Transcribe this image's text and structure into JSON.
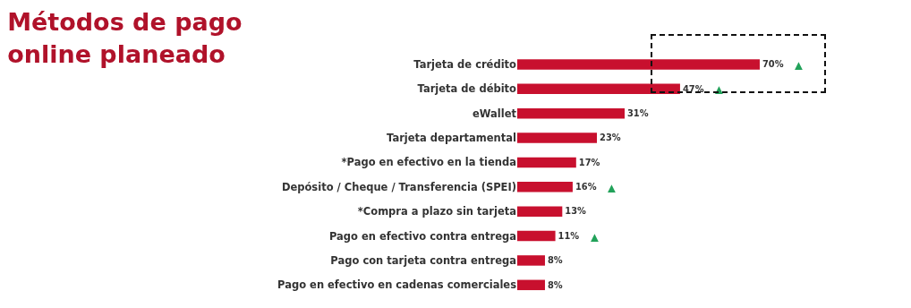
{
  "chart_data": {
    "type": "bar",
    "orientation": "horizontal",
    "title": "Métodos de pago\nonline planeado",
    "categories": [
      "Tarjeta de crédito",
      "Tarjeta de débito",
      "eWallet",
      "Tarjeta departamental",
      "*Pago en efectivo en la tienda",
      "Depósito / Cheque / Transferencia (SPEI)",
      "*Compra a plazo sin tarjeta",
      "Pago en efectivo contra entrega",
      "Pago con tarjeta contra entrega",
      "Pago en efectivo en cadenas comerciales"
    ],
    "values": [
      70,
      47,
      31,
      23,
      17,
      16,
      13,
      11,
      8,
      8
    ],
    "value_labels": [
      "70%",
      "47%",
      "31%",
      "23%",
      "17%",
      "16%",
      "13%",
      "11%",
      "8%",
      "8%"
    ],
    "color": "#c8102e",
    "annotations": [
      {
        "text": "▲",
        "x": 70,
        "y": "Tarjeta de crédito"
      },
      {
        "text": "▲",
        "x": 47,
        "y": "Tarjeta de débito"
      },
      {
        "text": "▲",
        "x": 16,
        "y": "Depósito / Cheque / Transferencia (SPEI)"
      },
      {
        "text": "▲",
        "x": 11,
        "y": "Pago en efectivo contra entrega"
      }
    ],
    "grid": false,
    "legend": false
  }
}
